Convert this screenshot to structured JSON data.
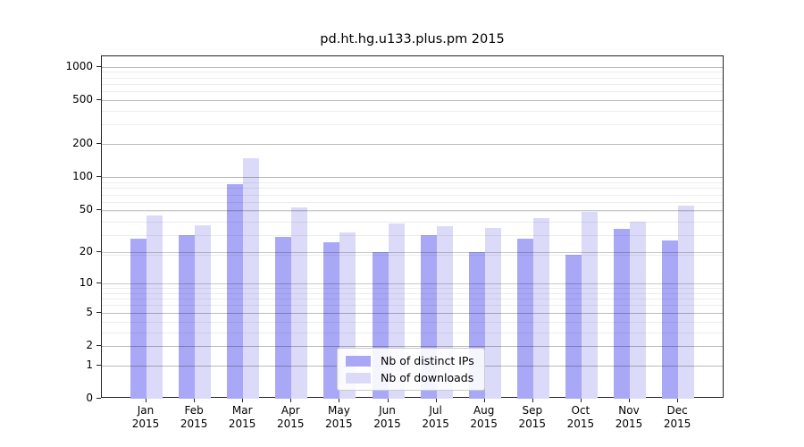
{
  "chart_data": {
    "type": "bar",
    "title": "pd.ht.hg.u133.plus.pm 2015",
    "categories": [
      "Jan",
      "Feb",
      "Mar",
      "Apr",
      "May",
      "Jun",
      "Jul",
      "Aug",
      "Sep",
      "Oct",
      "Nov",
      "Dec"
    ],
    "year": "2015",
    "series": [
      {
        "name": "Nb of distinct IPs",
        "color": "#a8a8f6",
        "values": [
          27,
          29,
          86,
          28,
          25,
          20,
          29,
          20,
          27,
          19,
          33,
          26
        ]
      },
      {
        "name": "Nb of downloads",
        "color": "#dbdbf9",
        "values": [
          44,
          36,
          147,
          53,
          31,
          37,
          35,
          34,
          42,
          48,
          39,
          55
        ]
      }
    ],
    "y_axis": {
      "scale": "log10(value+1)",
      "tick_values": [
        0,
        1,
        2,
        5,
        10,
        20,
        50,
        100,
        200,
        500,
        1000
      ],
      "ylim": [
        0,
        1230
      ]
    },
    "x_axis": {
      "tick_label_line2": "2015"
    },
    "legend": {
      "position": "bottom-center",
      "entries": [
        "Nb of distinct IPs",
        "Nb of downloads"
      ]
    },
    "grid": {
      "on": true,
      "major_color": "#c9c9c9",
      "minor_color": "#ededed"
    }
  }
}
